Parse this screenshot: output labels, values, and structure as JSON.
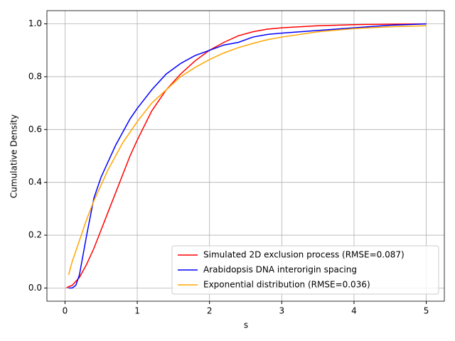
{
  "chart_data": {
    "type": "line",
    "xlabel": "s",
    "ylabel": "Cumulative Density",
    "x": [
      0.02,
      0.05,
      0.1,
      0.15,
      0.2,
      0.3,
      0.4,
      0.5,
      0.6,
      0.7,
      0.8,
      0.9,
      1.0,
      1.2,
      1.4,
      1.6,
      1.8,
      2.0,
      2.2,
      2.4,
      2.6,
      2.8,
      3.0,
      3.5,
      4.0,
      4.5,
      5.0
    ],
    "series": [
      {
        "name": "Simulated 2D exclusion process (RMSE=0.087)",
        "color": "#ff0000",
        "values": [
          0.0,
          0.005,
          0.01,
          0.025,
          0.04,
          0.09,
          0.15,
          0.22,
          0.29,
          0.36,
          0.43,
          0.5,
          0.56,
          0.67,
          0.75,
          0.81,
          0.86,
          0.9,
          0.93,
          0.955,
          0.97,
          0.98,
          0.985,
          0.993,
          0.997,
          0.999,
          1.0
        ]
      },
      {
        "name": "Arabidopsis DNA interorigin spacing",
        "color": "#0000ff",
        "values": [
          null,
          0.0,
          0.0,
          0.01,
          0.05,
          0.2,
          0.34,
          0.42,
          0.48,
          0.54,
          0.59,
          0.64,
          0.68,
          0.75,
          0.81,
          0.85,
          0.88,
          0.9,
          0.92,
          0.93,
          0.95,
          0.96,
          0.965,
          0.975,
          0.985,
          0.995,
          1.0
        ]
      },
      {
        "name": "Exponential distribution (RMSE=0.036)",
        "color": "#ffa500",
        "values": [
          null,
          0.05,
          0.1,
          0.14,
          0.18,
          0.26,
          0.33,
          0.39,
          0.45,
          0.5,
          0.55,
          0.59,
          0.63,
          0.7,
          0.75,
          0.8,
          0.835,
          0.865,
          0.89,
          0.91,
          0.926,
          0.94,
          0.95,
          0.97,
          0.982,
          0.989,
          0.993
        ]
      }
    ],
    "xlim": [
      -0.25,
      5.25
    ],
    "ylim": [
      -0.05,
      1.05
    ],
    "xticks": [
      0,
      1,
      2,
      3,
      4,
      5
    ],
    "yticks": [
      {
        "value": 0,
        "label": "0.0"
      },
      {
        "value": 0.2,
        "label": "0.2"
      },
      {
        "value": 0.4,
        "label": "0.4"
      },
      {
        "value": 0.6,
        "label": "0.6"
      },
      {
        "value": 0.8,
        "label": "0.8"
      },
      {
        "value": 1.0,
        "label": "1.0"
      }
    ],
    "grid": true,
    "legend": "lower right"
  }
}
